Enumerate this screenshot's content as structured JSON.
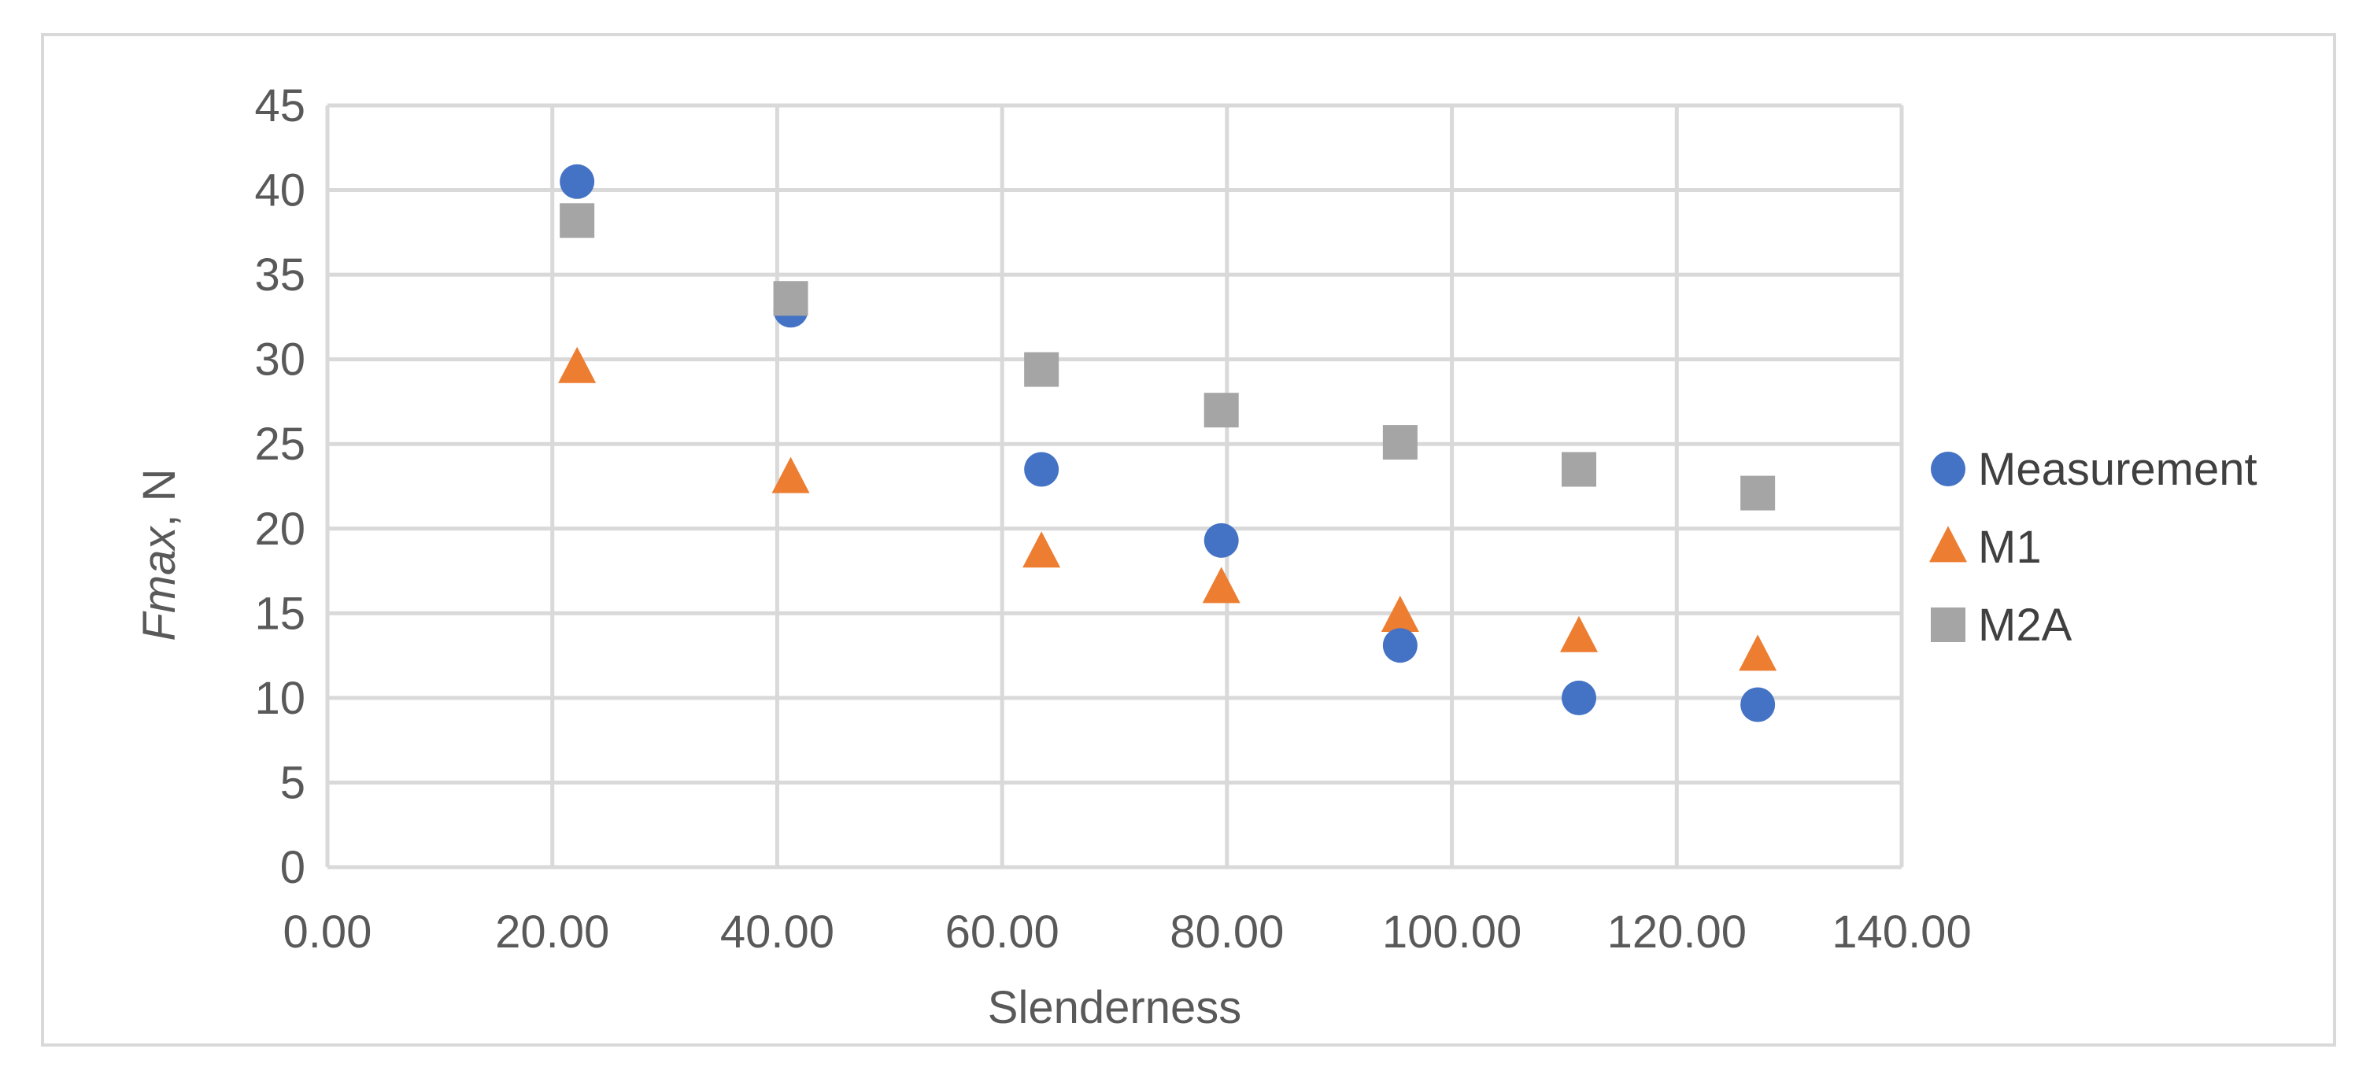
{
  "chart_data": {
    "type": "scatter",
    "title": "",
    "xlabel": "Slenderness",
    "ylabel_italic": "Fmax",
    "ylabel_rest": ", N",
    "xlim": [
      0,
      140
    ],
    "ylim": [
      0,
      45
    ],
    "x_ticks": [
      0,
      20,
      40,
      60,
      80,
      100,
      120,
      140
    ],
    "x_tick_labels": [
      "0.00",
      "20.00",
      "40.00",
      "60.00",
      "80.00",
      "100.00",
      "120.00",
      "140.00"
    ],
    "y_ticks": [
      0,
      5,
      10,
      15,
      20,
      25,
      30,
      35,
      40,
      45
    ],
    "y_tick_labels": [
      "0",
      "5",
      "10",
      "15",
      "20",
      "25",
      "30",
      "35",
      "40",
      "45"
    ],
    "grid": true,
    "legend_position": "right",
    "series": [
      {
        "name": "Measurement",
        "marker": "circle",
        "color": "#4472c4",
        "points": [
          [
            22.2,
            40.5
          ],
          [
            41.2,
            32.9
          ],
          [
            63.5,
            23.5
          ],
          [
            79.5,
            19.3
          ],
          [
            95.4,
            13.1
          ],
          [
            111.3,
            10.0
          ],
          [
            127.2,
            9.6
          ]
        ]
      },
      {
        "name": "M1",
        "marker": "triangle",
        "color": "#ed7d31",
        "points": [
          [
            22.2,
            29.5
          ],
          [
            41.2,
            23.0
          ],
          [
            63.5,
            18.6
          ],
          [
            79.5,
            16.5
          ],
          [
            95.4,
            14.8
          ],
          [
            111.3,
            13.6
          ],
          [
            127.2,
            12.5
          ]
        ]
      },
      {
        "name": "M2A",
        "marker": "square",
        "color": "#a5a5a5",
        "points": [
          [
            22.2,
            38.2
          ],
          [
            41.2,
            33.6
          ],
          [
            63.5,
            29.4
          ],
          [
            79.5,
            27.0
          ],
          [
            95.4,
            25.1
          ],
          [
            111.3,
            23.5
          ],
          [
            127.2,
            22.1
          ]
        ]
      }
    ]
  }
}
